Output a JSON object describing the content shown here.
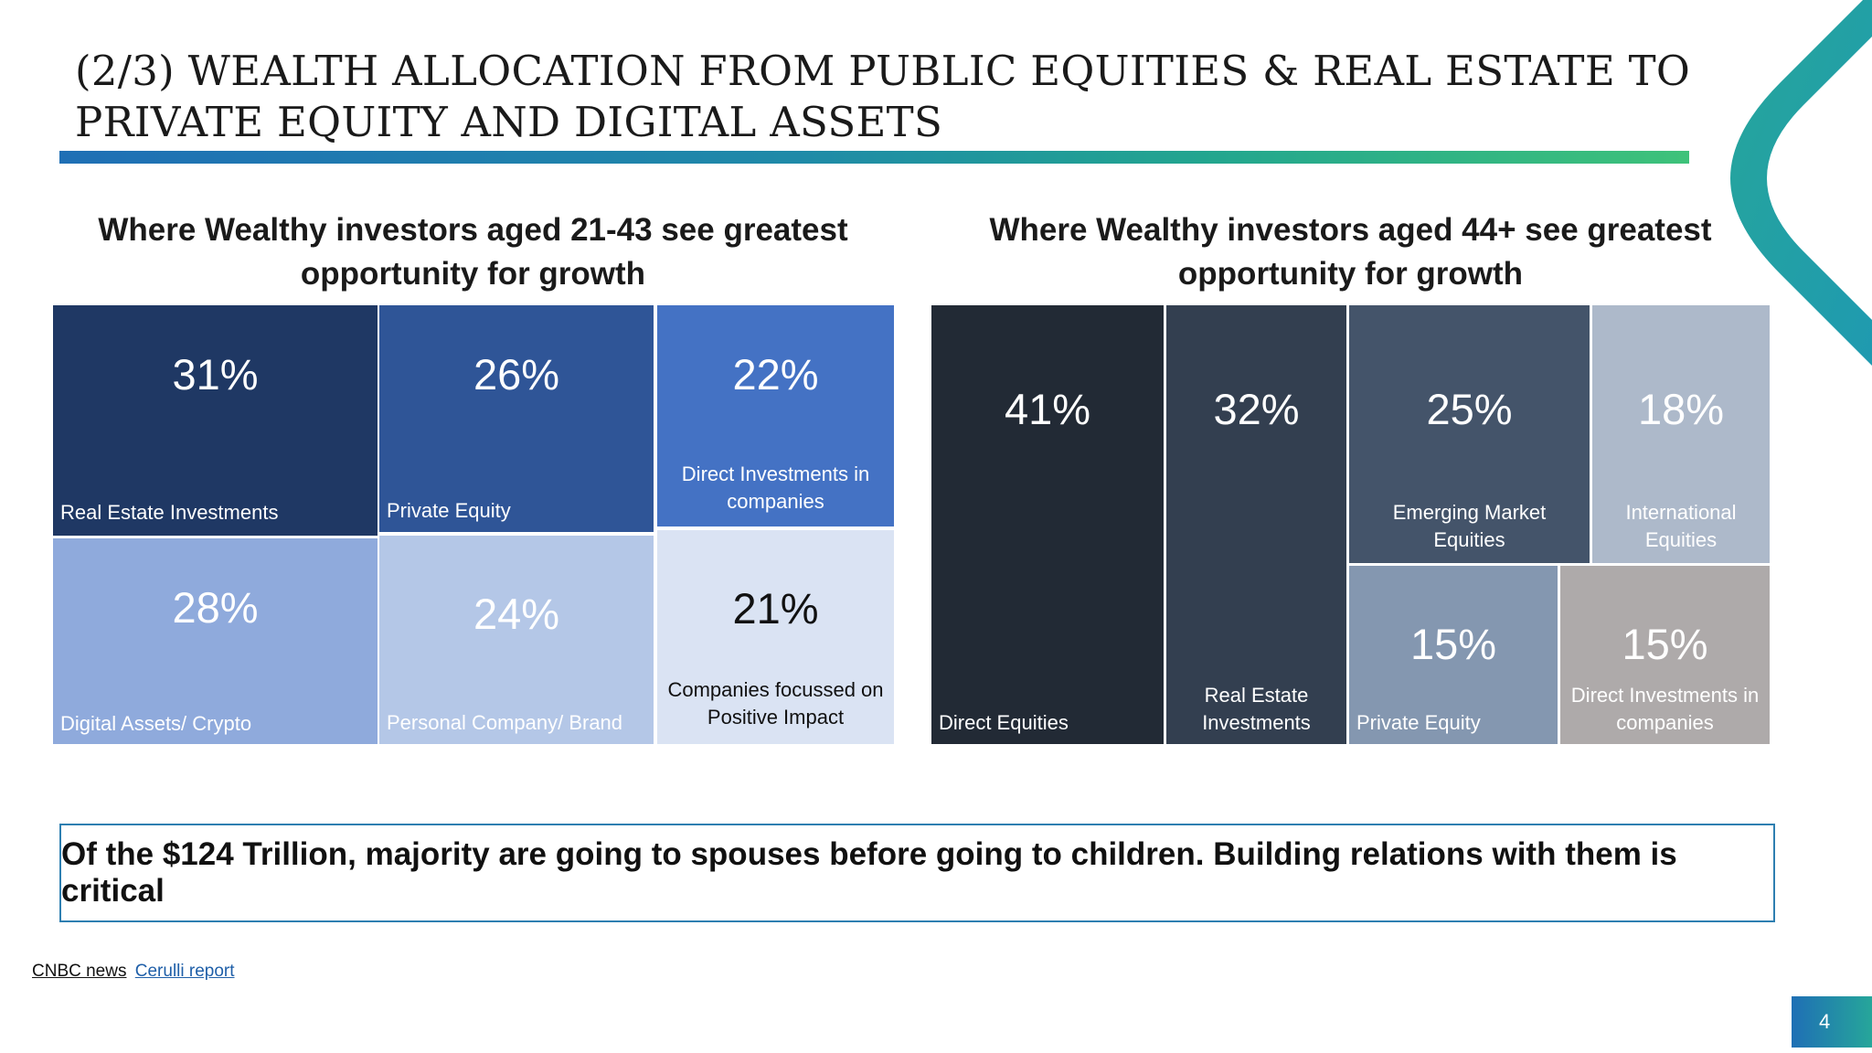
{
  "slide": {
    "title": "(2/3) WEALTH ALLOCATION FROM PUBLIC EQUITIES & REAL ESTATE TO PRIVATE EQUITY AND DIGITAL ASSETS",
    "callout": "Of the $124 Trillion, majority are going to spouses before going to children. Building relations with them is critical",
    "source_1": "CNBC news",
    "source_2": "Cerulli report",
    "page_number": "4",
    "accent_colors": {
      "rule_start": "#1f6fb5",
      "rule_end": "#3ec27a",
      "callout_border": "#2e7fb1"
    }
  },
  "chart_data": [
    {
      "type": "treemap",
      "title_line_1": "Where Wealthy investors aged 21-43 see greatest",
      "title_line_2": "opportunity for growth",
      "cells": [
        {
          "label": "Real Estate Investments",
          "value": "31%",
          "color": "#1f3864",
          "text_color": "#ffffff"
        },
        {
          "label": "Private Equity",
          "value": "26%",
          "color": "#2f5597",
          "text_color": "#ffffff"
        },
        {
          "label": "Direct Investments in companies",
          "value": "22%",
          "color": "#4472c4",
          "text_color": "#ffffff"
        },
        {
          "label": "Digital Assets/ Crypto",
          "value": "28%",
          "color": "#8faadc",
          "text_color": "#ffffff"
        },
        {
          "label": "Personal Company/ Brand",
          "value": "24%",
          "color": "#b4c7e7",
          "text_color": "#ffffff"
        },
        {
          "label": "Companies focussed on Positive Impact",
          "value": "21%",
          "color": "#dae3f3",
          "text_color": "#111111"
        }
      ]
    },
    {
      "type": "treemap",
      "title_line_1": "Where Wealthy investors aged 44+ see greatest",
      "title_line_2": "opportunity for growth",
      "cells": [
        {
          "label": "Direct Equities",
          "value": "41%",
          "color": "#222a35",
          "text_color": "#ffffff"
        },
        {
          "label": "Real Estate Investments",
          "value": "32%",
          "color": "#333f50",
          "text_color": "#ffffff"
        },
        {
          "label": "Emerging Market Equities",
          "value": "25%",
          "color": "#44546a",
          "text_color": "#ffffff"
        },
        {
          "label": "International Equities",
          "value": "18%",
          "color": "#adb9ca",
          "text_color": "#ffffff"
        },
        {
          "label": "Private Equity",
          "value": "15%",
          "color": "#8497b0",
          "text_color": "#ffffff"
        },
        {
          "label": "Direct Investments in companies",
          "value": "15%",
          "color": "#aeaaaa",
          "text_color": "#ffffff"
        }
      ]
    }
  ]
}
